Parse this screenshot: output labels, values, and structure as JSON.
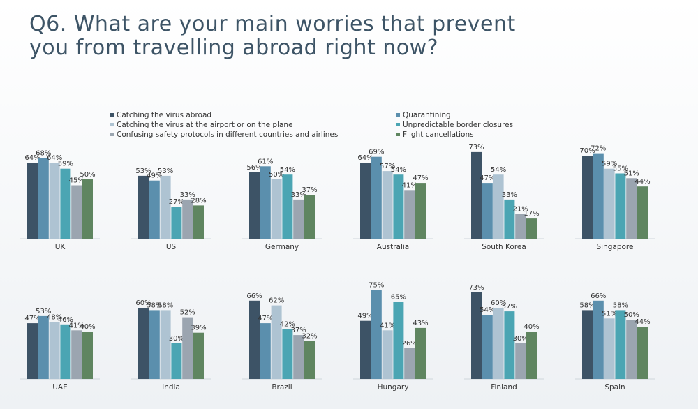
{
  "title": "Q6. What are your main worries that prevent you from travelling abroad right now?",
  "chart_data": {
    "type": "bar",
    "ylim": [
      0,
      100
    ],
    "legend_position": "top",
    "grid": false,
    "series": [
      {
        "name": "Catching the virus abroad",
        "color": "#3d5366"
      },
      {
        "name": "Quarantining",
        "color": "#5b8fad"
      },
      {
        "name": "Catching the virus at the airport or on the plane",
        "color": "#aec3d2"
      },
      {
        "name": "Unpredictable border closures",
        "color": "#4ba5b3"
      },
      {
        "name": "Confusing safety protocols in different countries and airlines",
        "color": "#9ba5b0"
      },
      {
        "name": "Flight cancellations",
        "color": "#5f8560"
      }
    ],
    "panels": [
      {
        "country": "UK",
        "values": [
          64,
          68,
          64,
          59,
          45,
          50
        ]
      },
      {
        "country": "US",
        "values": [
          53,
          49,
          53,
          27,
          33,
          28
        ]
      },
      {
        "country": "Germany",
        "values": [
          56,
          61,
          50,
          54,
          33,
          37
        ]
      },
      {
        "country": "Australia",
        "values": [
          64,
          69,
          57,
          54,
          41,
          47
        ]
      },
      {
        "country": "South Korea",
        "values": [
          73,
          47,
          54,
          33,
          21,
          17
        ]
      },
      {
        "country": "Singapore",
        "values": [
          70,
          72,
          59,
          55,
          51,
          44
        ]
      },
      {
        "country": "UAE",
        "values": [
          47,
          53,
          48,
          46,
          41,
          40
        ]
      },
      {
        "country": "India",
        "values": [
          60,
          58,
          58,
          30,
          52,
          39
        ]
      },
      {
        "country": "Brazil",
        "values": [
          66,
          47,
          62,
          42,
          37,
          32
        ]
      },
      {
        "country": "Hungary",
        "values": [
          49,
          75,
          41,
          65,
          26,
          43
        ]
      },
      {
        "country": "Finland",
        "values": [
          73,
          54,
          60,
          57,
          30,
          40
        ]
      },
      {
        "country": "Spain",
        "values": [
          58,
          66,
          51,
          58,
          50,
          44
        ]
      }
    ]
  }
}
